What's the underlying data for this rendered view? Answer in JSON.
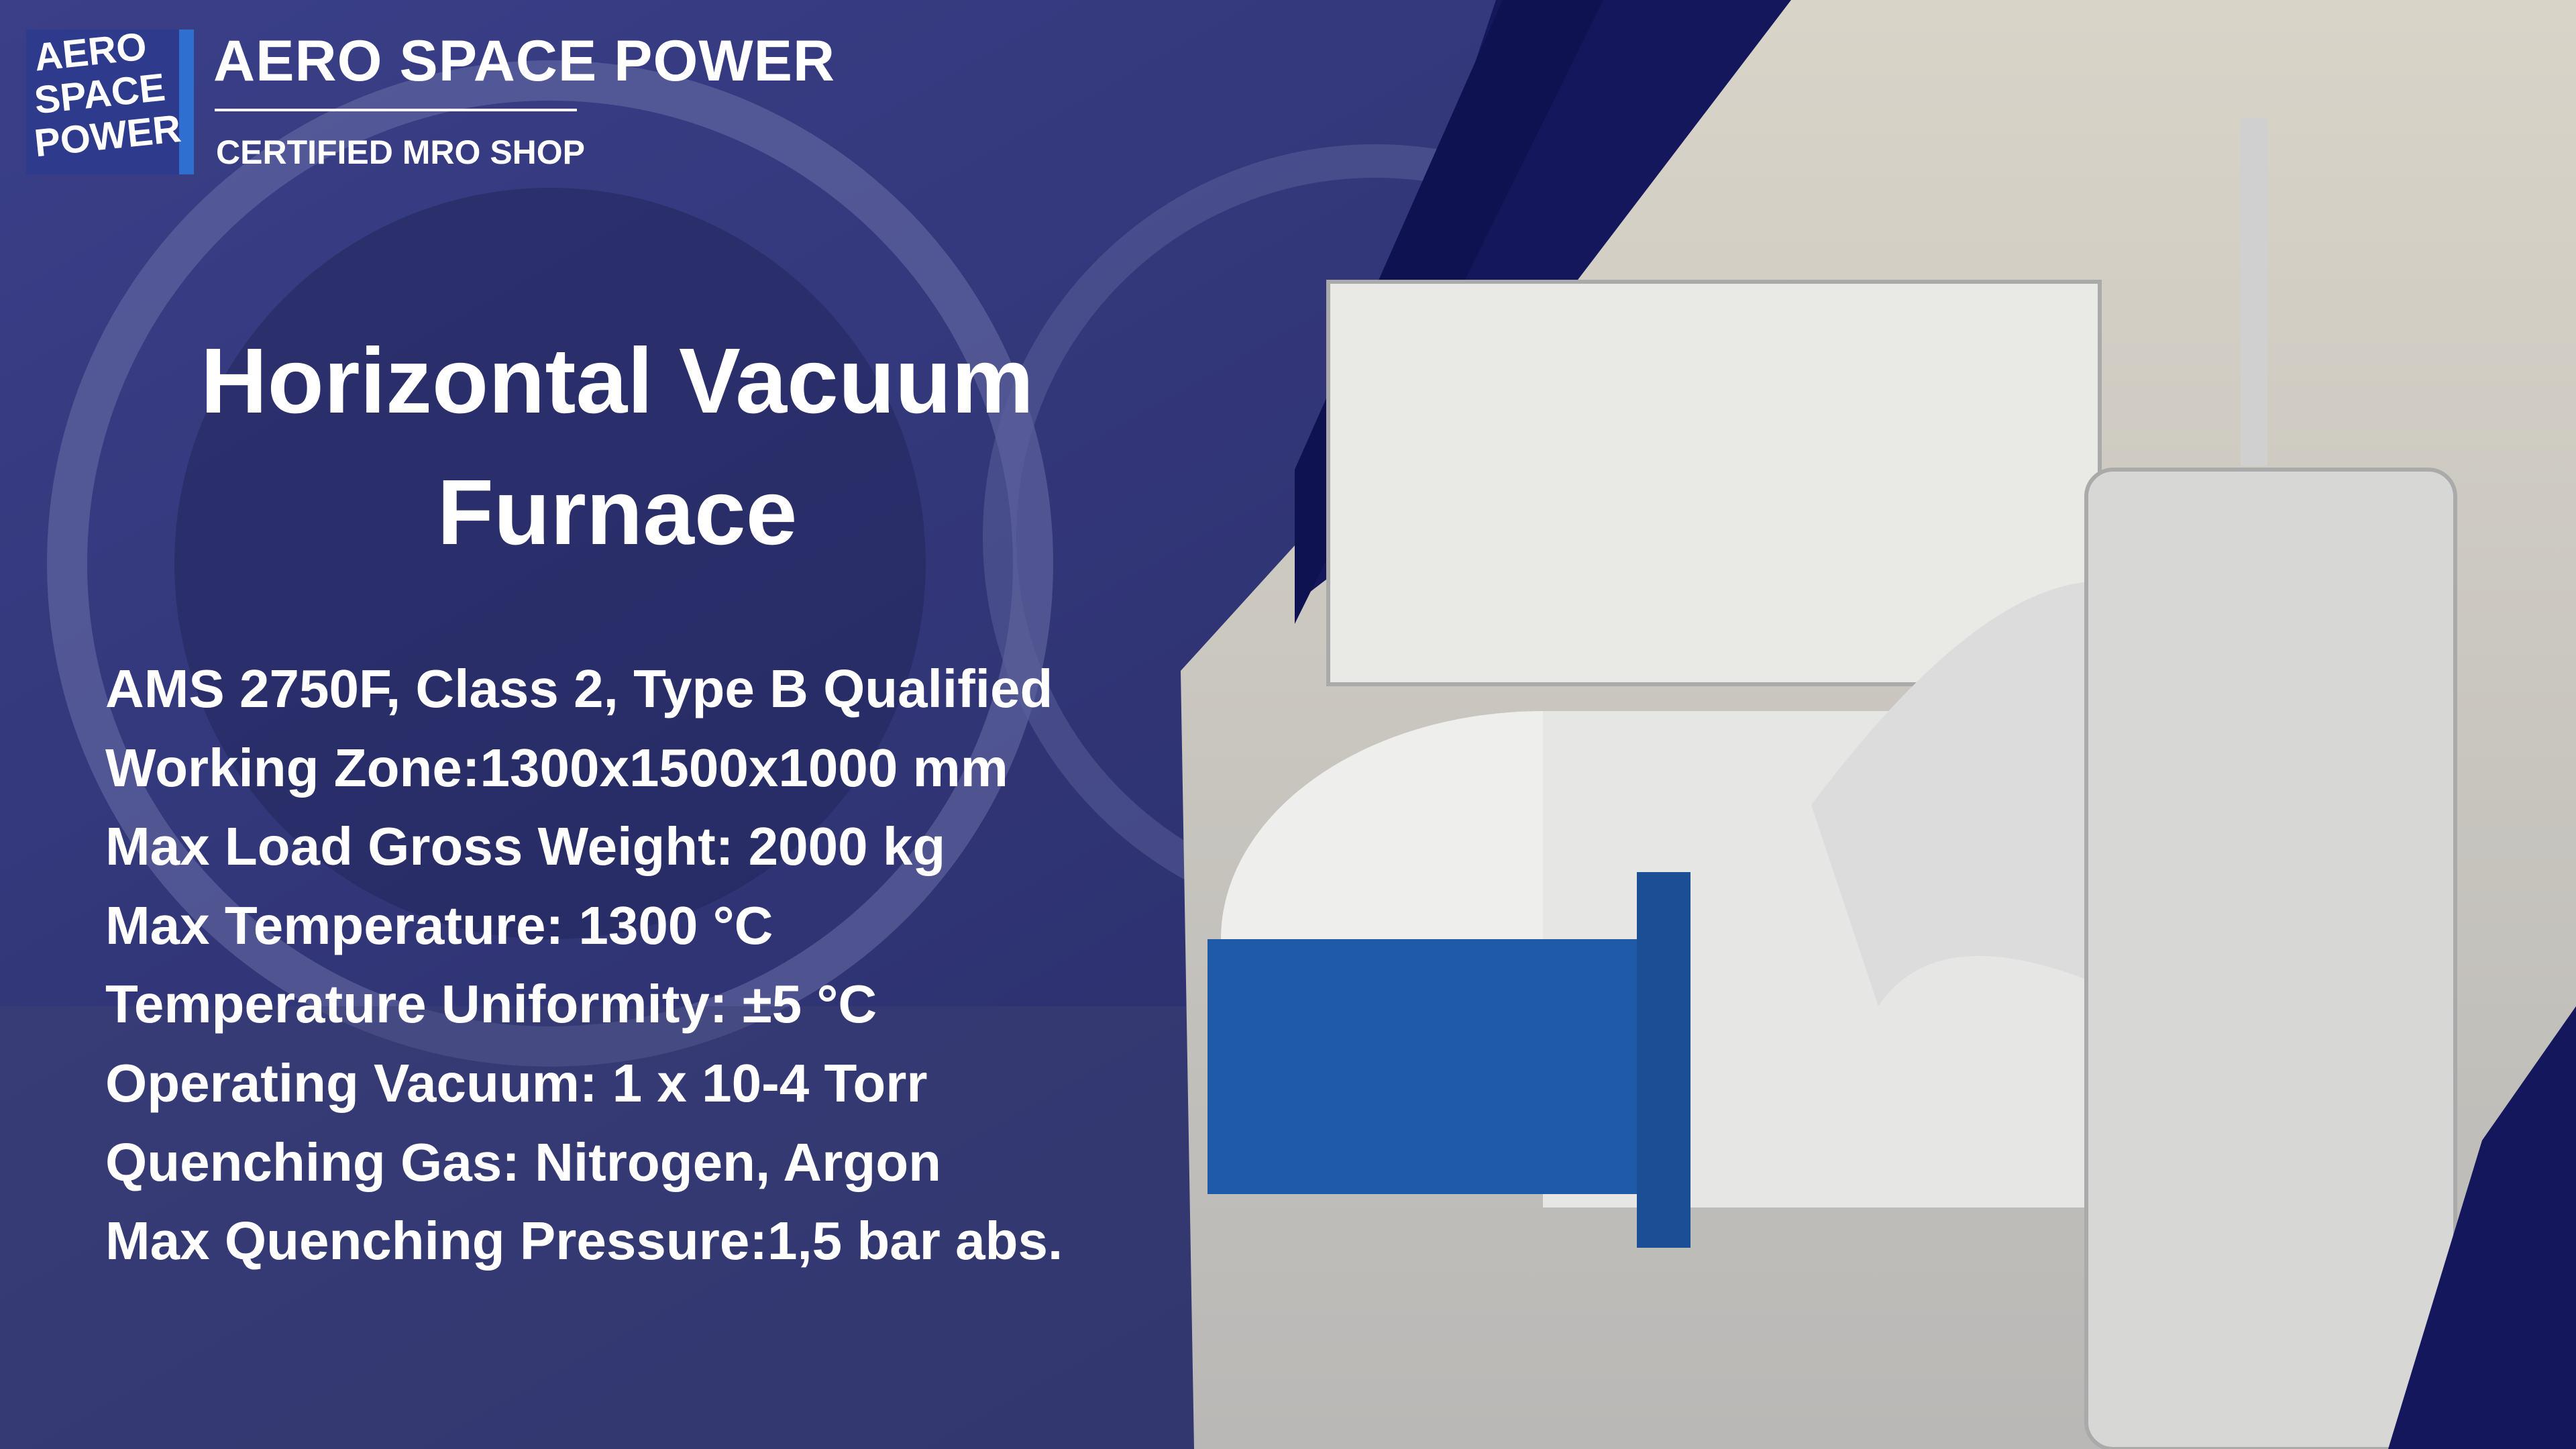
{
  "logo": {
    "lines": [
      "AERO",
      "SPACE",
      "POWER"
    ]
  },
  "header": {
    "brand": "AERO SPACE POWER",
    "tagline": "CERTIFIED MRO SHOP"
  },
  "title_lines": [
    "Horizontal Vacuum",
    "Furnace"
  ],
  "specs": [
    "AMS 2750F, Class 2, Type B Qualified",
    "Working Zone:1300x1500x1000 mm",
    "Max Load Gross Weight: 2000 kg",
    "Max Temperature: 1300 °C",
    "Temperature Uniformity: ±5 °C",
    "Operating Vacuum: 1 x 10-4 Torr",
    "Quenching Gas: Nitrogen, Argon",
    "Max Quenching Pressure:1,5 bar abs."
  ]
}
